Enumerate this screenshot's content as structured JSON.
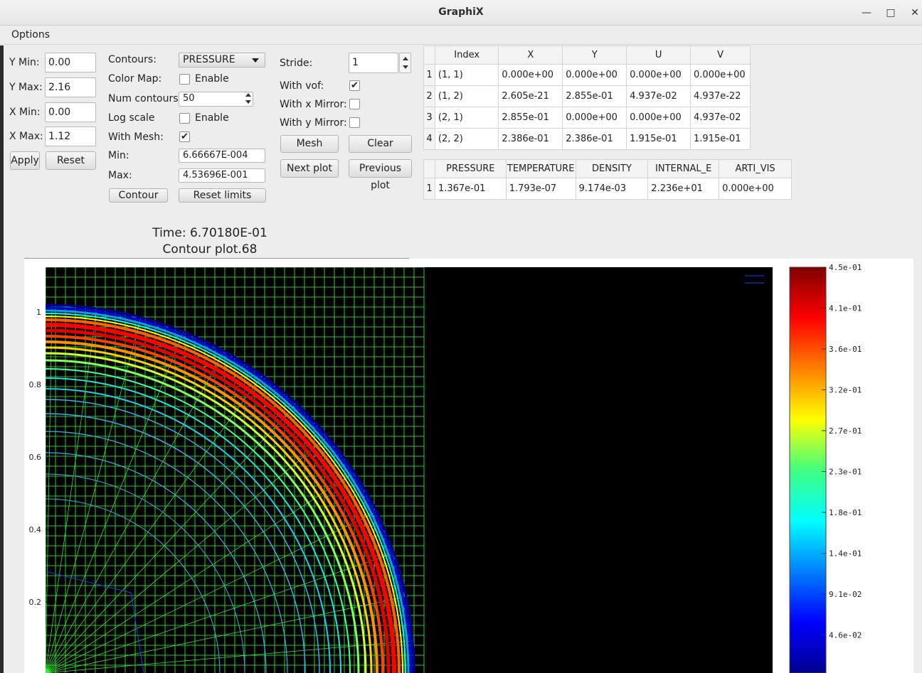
{
  "window": {
    "title": "GraphiX"
  },
  "menu": {
    "options": "Options"
  },
  "limits": {
    "ymin_label": "Y Min:",
    "ymin": "0.00",
    "ymax_label": "Y Max:",
    "ymax": "2.16",
    "xmin_label": "X Min:",
    "xmin": "0.00",
    "xmax_label": "X Max:",
    "xmax": "1.12",
    "apply": "Apply",
    "reset": "Reset"
  },
  "contour": {
    "contours_label": "Contours:",
    "contours_value": "PRESSURE",
    "colormap_label": "Color Map:",
    "colormap_enable": "Enable",
    "num_label": "Num contours",
    "num_value": "50",
    "log_label": "Log scale",
    "log_enable": "Enable",
    "mesh_label": "With Mesh:",
    "min_label": "Min:",
    "min_value": "6.66667E-004",
    "max_label": "Max:",
    "max_value": "4.53696E-001",
    "contour_btn": "Contour",
    "reset_limits_btn": "Reset limits"
  },
  "options": {
    "stride_label": "Stride:",
    "stride_value": "1",
    "vof_label": "With vof:",
    "xmirror_label": "With x Mirror:",
    "ymirror_label": "With y Mirror:",
    "mesh_btn": "Mesh",
    "clear_btn": "Clear",
    "next_btn": "Next plot",
    "prev_btn": "Previous plot"
  },
  "table1": {
    "headers": [
      "Index",
      "X",
      "Y",
      "U",
      "V"
    ],
    "rows": [
      [
        "1",
        "(1, 1)",
        "0.000e+00",
        "0.000e+00",
        "0.000e+00",
        "0.000e+00"
      ],
      [
        "2",
        "(1, 2)",
        "2.605e-21",
        "2.855e-01",
        "4.937e-02",
        "4.937e-22"
      ],
      [
        "3",
        "(2, 1)",
        "2.855e-01",
        "0.000e+00",
        "0.000e+00",
        "4.937e-02"
      ],
      [
        "4",
        "(2, 2)",
        "2.386e-01",
        "2.386e-01",
        "1.915e-01",
        "1.915e-01"
      ]
    ]
  },
  "table2": {
    "headers": [
      "PRESSURE",
      "TEMPERATURE",
      "DENSITY",
      "INTERNAL_E",
      "ARTI_VIS"
    ],
    "rows": [
      [
        "1",
        "1.367e-01",
        "1.793e-07",
        "9.174e-03",
        "2.236e+01",
        "0.000e+00"
      ]
    ]
  },
  "plot": {
    "time": "Time: 6.70180E-01",
    "title": "Contour plot.68"
  },
  "chart_data": {
    "type": "heatmap",
    "title": "Contour plot.68",
    "yticks": [
      "1",
      "0.8",
      "0.6",
      "0.4",
      "0.2"
    ],
    "colorbar_ticks": [
      "4.5e-01",
      "4.1e-01",
      "3.6e-01",
      "3.2e-01",
      "2.7e-01",
      "2.3e-01",
      "1.8e-01",
      "1.4e-01",
      "9.1e-02",
      "4.6e-02"
    ],
    "colorbar_range": [
      0.000666667,
      0.453696
    ],
    "colormap": "jet",
    "background": "#000000",
    "mesh_color": "#33ff33"
  }
}
